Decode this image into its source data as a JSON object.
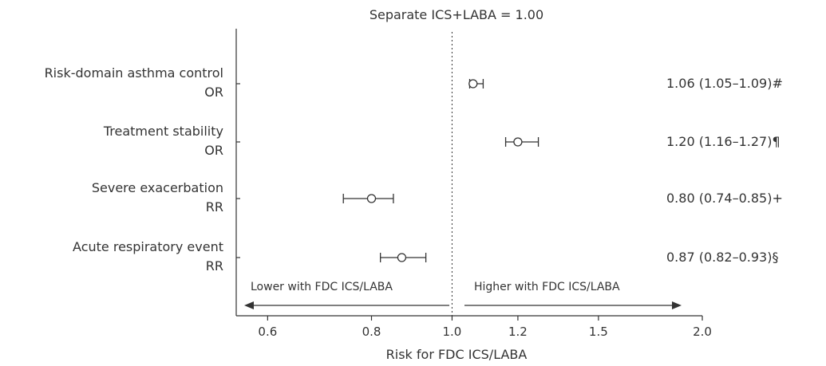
{
  "chart_data": {
    "type": "forest",
    "title": "Separate ICS+LABA = 1.00",
    "xlabel": "Risk for FDC ICS/LABA",
    "x_scale": "log",
    "xlim": [
      0.55,
      2.0
    ],
    "reference_value": 1.0,
    "xticks": [
      {
        "value": 0.6,
        "label": "0.6"
      },
      {
        "value": 0.8,
        "label": "0.8"
      },
      {
        "value": 1.0,
        "label": "1.0"
      },
      {
        "value": 1.2,
        "label": "1.2"
      },
      {
        "value": 1.5,
        "label": "1.5"
      },
      {
        "value": 2.0,
        "label": "2.0"
      }
    ],
    "rows": [
      {
        "label": "Risk-domain asthma control",
        "measure": "OR",
        "estimate": 1.06,
        "lower": 1.05,
        "upper": 1.09,
        "value_text": "1.06 (1.05–1.09)#"
      },
      {
        "label": "Treatment stability",
        "measure": "OR",
        "estimate": 1.2,
        "lower": 1.16,
        "upper": 1.27,
        "value_text": "1.20 (1.16–1.27)¶"
      },
      {
        "label": "Severe exacerbation",
        "measure": "RR",
        "estimate": 0.8,
        "lower": 0.74,
        "upper": 0.85,
        "value_text": "0.80 (0.74–0.85)+"
      },
      {
        "label": "Acute respiratory event",
        "measure": "RR",
        "estimate": 0.87,
        "lower": 0.82,
        "upper": 0.93,
        "value_text": "0.87 (0.82–0.93)§"
      }
    ],
    "annotations": {
      "lower": "Lower with FDC ICS/LABA",
      "higher": "Higher with FDC ICS/LABA"
    },
    "grid": false
  }
}
